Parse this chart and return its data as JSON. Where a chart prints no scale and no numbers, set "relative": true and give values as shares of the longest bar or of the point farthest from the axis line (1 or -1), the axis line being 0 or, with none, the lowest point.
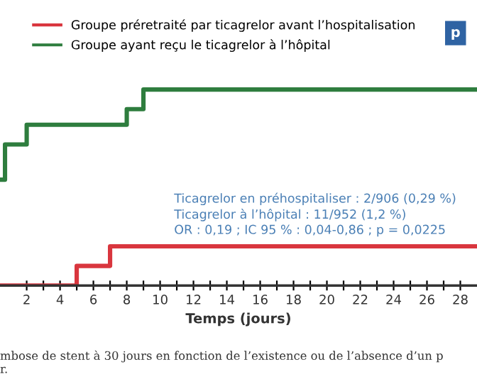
{
  "chart_data": {
    "type": "step",
    "relative": true,
    "xlabel": "Temps (jours)",
    "xlim": [
      0.4,
      29
    ],
    "xticks": [
      2,
      {
        "value": 3,
        "label": null
      },
      4,
      {
        "value": 5,
        "label": null
      },
      6,
      {
        "value": 7,
        "label": null
      },
      8,
      {
        "value": 9,
        "label": null
      },
      10,
      {
        "value": 11,
        "label": null
      },
      12,
      {
        "value": 13,
        "label": null
      },
      14,
      {
        "value": 15,
        "label": null
      },
      16,
      {
        "value": 17,
        "label": null
      },
      18,
      {
        "value": 19,
        "label": null
      },
      20,
      {
        "value": 21,
        "label": null
      },
      22,
      {
        "value": 23,
        "label": null
      },
      24,
      {
        "value": 25,
        "label": null
      },
      26,
      {
        "value": 27,
        "label": null
      },
      28
    ],
    "series": [
      {
        "name": "Groupe préretraité par ticagrelor avant l’hospitalisation",
        "color": "#d9363e",
        "x": [
          0.4,
          5,
          7,
          29
        ],
        "values": [
          0,
          0.1,
          0.2,
          0.2
        ]
      },
      {
        "name": "Groupe ayant reçu le ticagrelor à l’hôpital",
        "color": "#2e7d3e",
        "x": [
          0.4,
          0.7,
          2,
          8,
          9,
          29
        ],
        "values": [
          0.54,
          0.72,
          0.82,
          0.9,
          1,
          1
        ]
      }
    ],
    "legend": "top left",
    "grid": false,
    "annotations": [
      "Ticagrelor en préhospitaliser : 2/906 (0,29 %)\nTicagrelor à l’hôpital : 11/952 (1,2 %)\nOR : 0,19 ; IC 95 % : 0,04-0,86 ; p = 0,0225",
      "p",
      "mbose de stent à 30 jours en fonction de l’existence ou de l’absence d’un p\nr."
    ]
  }
}
